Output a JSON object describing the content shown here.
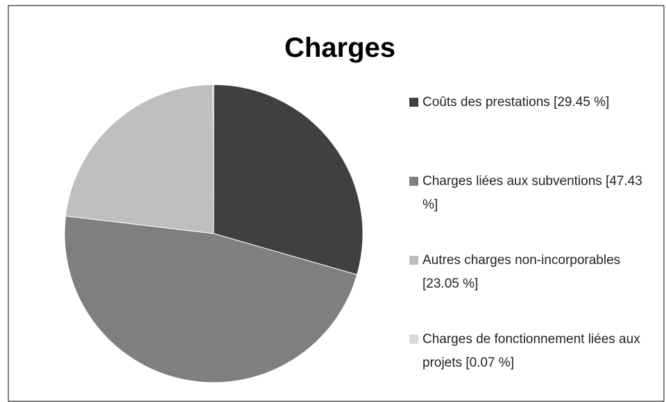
{
  "chart_data": {
    "type": "pie",
    "title": "Charges",
    "categories": [
      "Coûts des prestations",
      "Charges liées aux subventions",
      "Autres charges non-incorporables",
      "Charges de fonctionnement liées aux projets"
    ],
    "values": [
      29.45,
      47.43,
      23.05,
      0.07
    ],
    "value_labels": [
      "[29.45 %]",
      "[47.43 %]",
      "[23.05 %]",
      "[0.07 %]"
    ],
    "colors": [
      "#404040",
      "#7f7f7f",
      "#bfbfbf",
      "#d9d9d9"
    ],
    "legend": "right"
  }
}
